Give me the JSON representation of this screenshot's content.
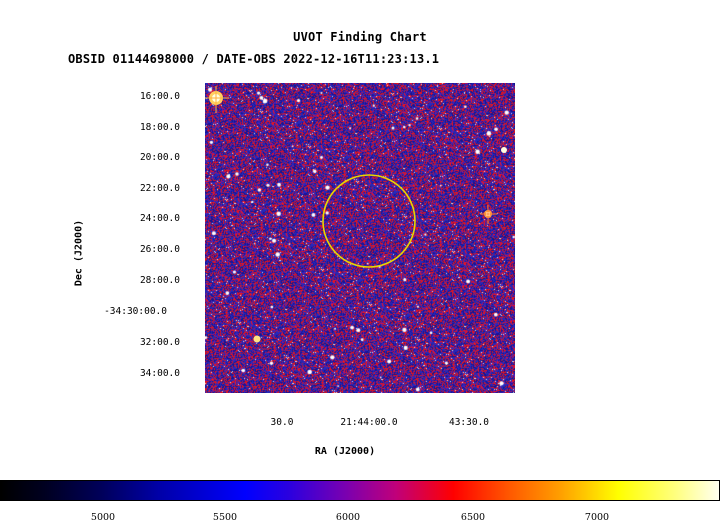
{
  "header": {
    "title": "UVOT Finding Chart",
    "subtitle": "OBSID 01144698000 / DATE-OBS 2022-12-16T11:23:13.1"
  },
  "axes": {
    "ylabel": "Dec (J2000)",
    "xlabel": "RA (J2000)",
    "dec_ticks": [
      "16:00.0",
      "18:00.0",
      "20:00.0",
      "22:00.0",
      "24:00.0",
      "26:00.0",
      "28:00.0",
      "-34:30:00.0",
      "32:00.0",
      "34:00.0"
    ],
    "ra_ticks": [
      "30.0",
      "21:44:00.0",
      "43:30.0"
    ]
  },
  "colorbar": {
    "ticks": [
      "5000",
      "5500",
      "6000",
      "6500",
      "7000"
    ]
  },
  "colors": {
    "circle": "#e8d800",
    "background_blue": "#2a2aa8",
    "noise_red": "#d81818"
  }
}
